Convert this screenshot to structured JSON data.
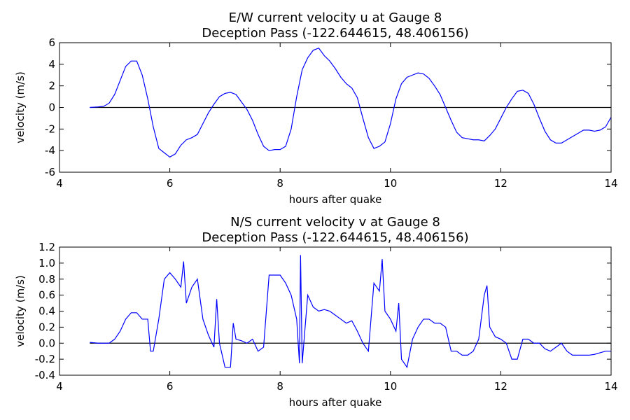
{
  "chart_data": [
    {
      "type": "line",
      "title": "E/W current velocity u at Gauge 8",
      "subtitle": "Deception Pass  (-122.644615, 48.406156)",
      "x_label": "hours after quake",
      "y_label": "velocity (m/s)",
      "color": "#0000ff",
      "hline": 0,
      "xlim": [
        4,
        14
      ],
      "xticks": [
        4,
        6,
        8,
        10,
        12,
        14
      ],
      "ylim": [
        -6,
        6
      ],
      "yticks": [
        -6,
        -4,
        -2,
        0,
        2,
        4,
        6
      ],
      "x": [
        4.55,
        4.7,
        4.8,
        4.9,
        5.0,
        5.1,
        5.2,
        5.3,
        5.4,
        5.5,
        5.6,
        5.7,
        5.8,
        5.9,
        6.0,
        6.1,
        6.2,
        6.3,
        6.4,
        6.5,
        6.6,
        6.7,
        6.8,
        6.9,
        7.0,
        7.1,
        7.2,
        7.3,
        7.4,
        7.5,
        7.6,
        7.7,
        7.8,
        7.9,
        8.0,
        8.1,
        8.2,
        8.3,
        8.4,
        8.5,
        8.6,
        8.7,
        8.8,
        8.9,
        9.0,
        9.1,
        9.2,
        9.3,
        9.4,
        9.5,
        9.6,
        9.7,
        9.8,
        9.9,
        10.0,
        10.1,
        10.2,
        10.3,
        10.4,
        10.5,
        10.6,
        10.7,
        10.8,
        10.9,
        11.0,
        11.1,
        11.2,
        11.3,
        11.4,
        11.5,
        11.6,
        11.7,
        11.8,
        11.9,
        12.0,
        12.1,
        12.2,
        12.3,
        12.4,
        12.5,
        12.6,
        12.7,
        12.8,
        12.9,
        13.0,
        13.1,
        13.2,
        13.3,
        13.4,
        13.5,
        13.6,
        13.7,
        13.8,
        13.9,
        14.0
      ],
      "values": [
        0,
        0.05,
        0.1,
        0.4,
        1.2,
        2.5,
        3.8,
        4.3,
        4.3,
        3.0,
        0.8,
        -1.8,
        -3.8,
        -4.2,
        -4.6,
        -4.3,
        -3.5,
        -3.0,
        -2.8,
        -2.5,
        -1.5,
        -0.5,
        0.3,
        1.0,
        1.3,
        1.4,
        1.2,
        0.5,
        -0.2,
        -1.2,
        -2.5,
        -3.6,
        -4.0,
        -3.9,
        -3.9,
        -3.6,
        -2.0,
        1.0,
        3.5,
        4.6,
        5.3,
        5.5,
        4.8,
        4.3,
        3.6,
        2.8,
        2.2,
        1.8,
        0.9,
        -1.0,
        -2.8,
        -3.8,
        -3.6,
        -3.2,
        -1.5,
        0.8,
        2.2,
        2.8,
        3.0,
        3.2,
        3.1,
        2.7,
        2.0,
        1.2,
        0,
        -1.2,
        -2.3,
        -2.8,
        -2.9,
        -3.0,
        -3.0,
        -3.1,
        -2.6,
        -2.0,
        -1.0,
        0,
        0.8,
        1.5,
        1.6,
        1.3,
        0.3,
        -1.0,
        -2.2,
        -3.0,
        -3.3,
        -3.3,
        -3.0,
        -2.7,
        -2.4,
        -2.1,
        -2.1,
        -2.2,
        -2.1,
        -1.8,
        -0.9
      ]
    },
    {
      "type": "line",
      "title": "N/S current velocity v at Gauge 8",
      "subtitle": "Deception Pass  (-122.644615, 48.406156)",
      "x_label": "hours after quake",
      "y_label": "velocity (m/s)",
      "color": "#0000ff",
      "hline": 0,
      "xlim": [
        4,
        14
      ],
      "xticks": [
        4,
        6,
        8,
        10,
        12,
        14
      ],
      "ylim": [
        -0.4,
        1.2
      ],
      "yticks": [
        -0.4,
        -0.2,
        {
          "value": 0,
          "label": "0.0"
        },
        0.2,
        0.4,
        0.6,
        0.8,
        {
          "value": 1,
          "label": "1.0"
        },
        1.2
      ],
      "x": [
        4.55,
        4.7,
        4.8,
        4.9,
        5.0,
        5.1,
        5.2,
        5.3,
        5.4,
        5.5,
        5.6,
        5.65,
        5.7,
        5.8,
        5.9,
        6.0,
        6.1,
        6.2,
        6.25,
        6.3,
        6.4,
        6.5,
        6.6,
        6.7,
        6.8,
        6.85,
        6.9,
        7.0,
        7.1,
        7.15,
        7.2,
        7.3,
        7.4,
        7.5,
        7.6,
        7.7,
        7.8,
        7.9,
        8.0,
        8.1,
        8.2,
        8.3,
        8.35,
        8.37,
        8.4,
        8.5,
        8.6,
        8.7,
        8.8,
        8.9,
        9.0,
        9.1,
        9.2,
        9.3,
        9.4,
        9.5,
        9.6,
        9.7,
        9.8,
        9.85,
        9.9,
        10.0,
        10.1,
        10.15,
        10.2,
        10.3,
        10.4,
        10.5,
        10.6,
        10.7,
        10.8,
        10.9,
        11.0,
        11.1,
        11.2,
        11.3,
        11.4,
        11.5,
        11.6,
        11.7,
        11.75,
        11.8,
        11.9,
        12.0,
        12.1,
        12.2,
        12.3,
        12.4,
        12.5,
        12.6,
        12.7,
        12.8,
        12.9,
        13.0,
        13.1,
        13.2,
        13.3,
        13.4,
        13.5,
        13.6,
        13.7,
        13.8,
        13.9,
        14.0
      ],
      "values": [
        0.01,
        0,
        0,
        0,
        0.05,
        0.15,
        0.3,
        0.38,
        0.38,
        0.3,
        0.3,
        -0.1,
        -0.1,
        0.3,
        0.8,
        0.88,
        0.8,
        0.7,
        1.02,
        0.5,
        0.7,
        0.8,
        0.3,
        0.1,
        -0.05,
        0.55,
        0,
        -0.3,
        -0.3,
        0.25,
        0.05,
        0.03,
        0,
        0.05,
        -0.1,
        -0.05,
        0.85,
        0.85,
        0.85,
        0.75,
        0.6,
        0.3,
        -0.25,
        1.1,
        -0.25,
        0.6,
        0.45,
        0.4,
        0.42,
        0.4,
        0.35,
        0.3,
        0.25,
        0.28,
        0.15,
        0,
        -0.1,
        0.75,
        0.65,
        1.05,
        0.4,
        0.3,
        0.15,
        0.5,
        -0.2,
        -0.3,
        0.05,
        0.2,
        0.3,
        0.3,
        0.25,
        0.25,
        0.2,
        -0.1,
        -0.1,
        -0.15,
        -0.15,
        -0.1,
        0.05,
        0.6,
        0.72,
        0.2,
        0.08,
        0.05,
        0,
        -0.2,
        -0.2,
        0.05,
        0.05,
        0,
        0,
        -0.07,
        -0.1,
        -0.05,
        0,
        -0.1,
        -0.15,
        -0.15,
        -0.15,
        -0.15,
        -0.14,
        -0.12,
        -0.1,
        -0.1
      ]
    }
  ]
}
